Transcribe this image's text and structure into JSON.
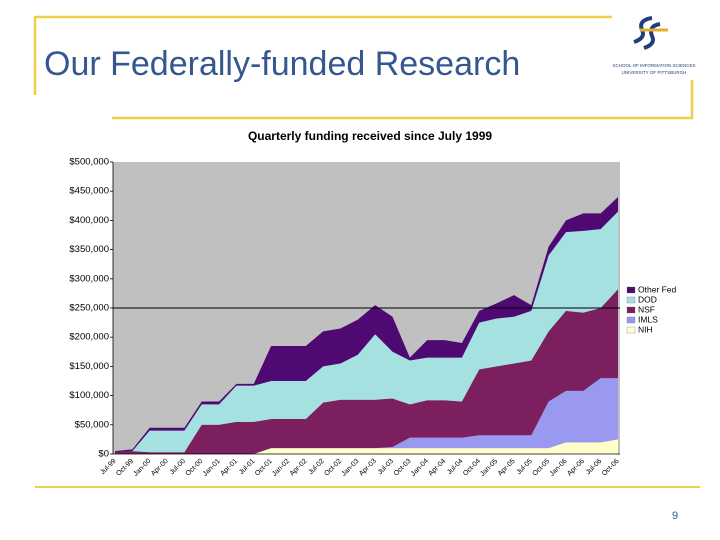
{
  "slide": {
    "title": "Our Federally-funded Research",
    "page_number": "9",
    "logo": {
      "line1": "SCHOOL OF INFORMATION SCIENCES",
      "line2": "UNIVERSITY OF PITTSBURGH"
    }
  },
  "chart_data": {
    "type": "area",
    "stacked": true,
    "title": "Quarterly funding received since July 1999",
    "categories": [
      "Jul-99",
      "Oct-99",
      "Jan-00",
      "Apr-00",
      "Jul-00",
      "Oct-00",
      "Jan-01",
      "Apr-01",
      "Jul-01",
      "Oct-01",
      "Jan-02",
      "Apr-02",
      "Jul-02",
      "Oct-02",
      "Jan-03",
      "Apr-03",
      "Jul-03",
      "Oct-03",
      "Jan-04",
      "Apr-04",
      "Jul-04",
      "Oct-04",
      "Jan-05",
      "Apr-05",
      "Jul-05",
      "Oct-05",
      "Jan-06",
      "Apr-06",
      "Jul-06",
      "Oct-06"
    ],
    "series": [
      {
        "name": "NIH",
        "color": "#ffffcc",
        "values": [
          0,
          0,
          0,
          0,
          0,
          0,
          0,
          0,
          0,
          10000,
          10000,
          10000,
          10000,
          10000,
          10000,
          10000,
          10000,
          10000,
          10000,
          10000,
          10000,
          10000,
          10000,
          10000,
          10000,
          10000,
          20000,
          20000,
          20000,
          25000
        ]
      },
      {
        "name": "IMLS",
        "color": "#9999f0",
        "values": [
          0,
          0,
          0,
          0,
          0,
          0,
          0,
          0,
          0,
          0,
          0,
          0,
          0,
          0,
          0,
          0,
          2000,
          18000,
          18000,
          18000,
          18000,
          22000,
          22000,
          22000,
          22000,
          80000,
          88000,
          88000,
          110000,
          105000
        ]
      },
      {
        "name": "NSF",
        "color": "#7b1f5e",
        "values": [
          3000,
          5000,
          3000,
          3000,
          3000,
          50000,
          50000,
          55000,
          55000,
          50000,
          50000,
          50000,
          78000,
          83000,
          83000,
          83000,
          83000,
          57000,
          64000,
          64000,
          62000,
          113000,
          118000,
          123000,
          128000,
          120000,
          137000,
          134000,
          120000,
          152000
        ]
      },
      {
        "name": "DOD",
        "color": "#a6e1e1",
        "values": [
          0,
          0,
          37000,
          37000,
          37000,
          35000,
          35000,
          62000,
          62000,
          65000,
          65000,
          65000,
          62000,
          62000,
          77000,
          112000,
          80000,
          75000,
          73000,
          73000,
          75000,
          80000,
          82000,
          80000,
          85000,
          130000,
          135000,
          140000,
          135000,
          133000
        ]
      },
      {
        "name": "Other Fed",
        "color": "#4e0a72",
        "values": [
          2000,
          3000,
          5000,
          5000,
          5000,
          5000,
          5000,
          3000,
          3000,
          60000,
          60000,
          60000,
          60000,
          60000,
          60000,
          50000,
          60000,
          5000,
          30000,
          30000,
          25000,
          20000,
          26000,
          37000,
          10000,
          15000,
          20000,
          30000,
          27000,
          25000
        ]
      }
    ],
    "ylim": [
      0,
      500000
    ],
    "yticks": [
      {
        "value": 0,
        "label": "$0"
      },
      {
        "value": 50000,
        "label": "$50,000"
      },
      {
        "value": 100000,
        "label": "$100,000"
      },
      {
        "value": 150000,
        "label": "$150,000"
      },
      {
        "value": 200000,
        "label": "$200,000"
      },
      {
        "value": 250000,
        "label": "$250,000"
      },
      {
        "value": 300000,
        "label": "$300,000"
      },
      {
        "value": 350000,
        "label": "$350,000"
      },
      {
        "value": 400000,
        "label": "$400,000"
      },
      {
        "value": 450000,
        "label": "$450,000"
      },
      {
        "value": 500000,
        "label": "$500,000"
      }
    ],
    "reference_line": 250000,
    "legend": "right",
    "plot_background": "#c0c0c0"
  }
}
